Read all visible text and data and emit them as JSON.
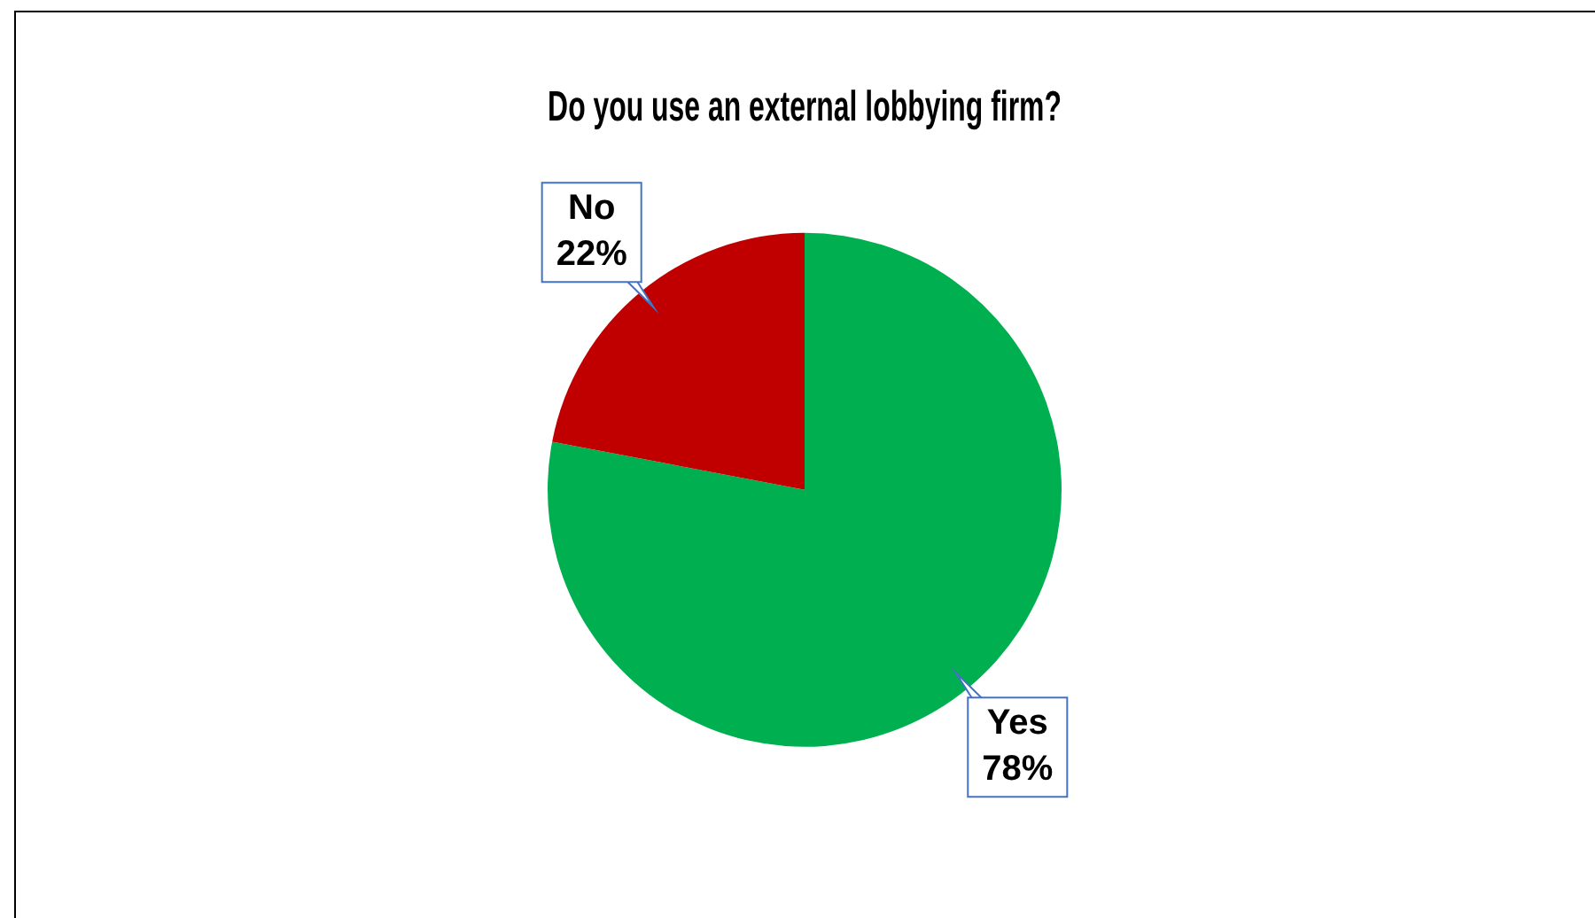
{
  "chart_data": {
    "type": "pie",
    "title": "Do you use an external lobbying firm?",
    "categories": [
      "Yes",
      "No"
    ],
    "values": [
      78,
      22
    ],
    "colors": [
      "#00b050",
      "#c00000"
    ],
    "value_labels": [
      "78%",
      "22%"
    ],
    "legend": false
  }
}
